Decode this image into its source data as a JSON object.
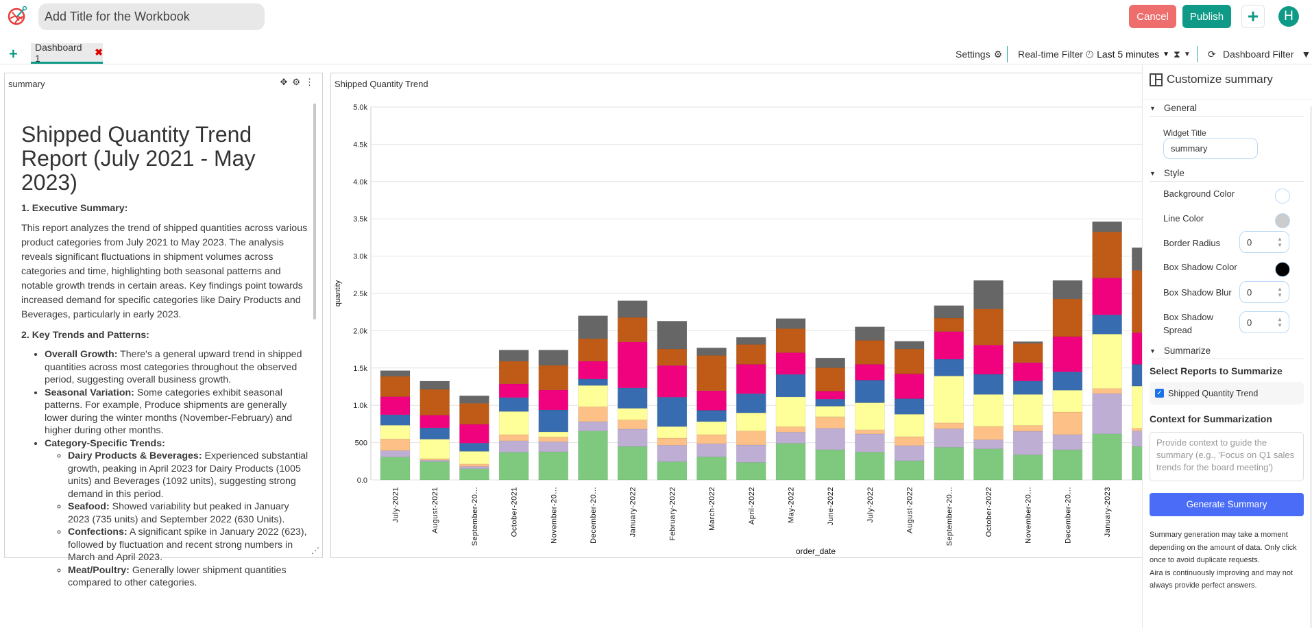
{
  "header": {
    "workbook_title_placeholder": "Add Title for the Workbook",
    "cancel": "Cancel",
    "publish": "Publish",
    "add_icon": "plus-icon",
    "avatar_initial": "H",
    "logo_icon": "aira-logo-icon"
  },
  "tabs": {
    "add_icon": "plus-icon",
    "items": [
      {
        "label": "Dashboard 1",
        "close_icon": "close-icon"
      }
    ]
  },
  "toolbar": {
    "settings": "Settings",
    "realtime": "Real-time Filter",
    "time_range": "Last 5 minutes",
    "dashboard_filter": "Dashboard Filter"
  },
  "summary_widget": {
    "title": "summary",
    "heading": "Shipped Quantity Trend Report (July 2021 - May 2023)",
    "s1": "1. Executive Summary:",
    "s1_text": "This report analyzes the trend of shipped quantities across various product categories from July 2021 to May 2023. The analysis reveals significant fluctuations in shipment volumes across categories and time, highlighting both seasonal patterns and notable growth trends in certain areas. Key findings point towards increased demand for specific categories like Dairy Products and Beverages, particularly in early 2023.",
    "s2": "2. Key Trends and Patterns:",
    "bullets": [
      {
        "b": "Overall Growth:",
        "t": " There's a general upward trend in shipped quantities across most categories throughout the observed period, suggesting overall business growth."
      },
      {
        "b": "Seasonal Variation:",
        "t": " Some categories exhibit seasonal patterns. For example, Produce shipments are generally lower during the winter months (November-February) and higher during other months."
      },
      {
        "b": "Category-Specific Trends:",
        "t": ""
      }
    ],
    "sub_bullets": [
      {
        "b": "Dairy Products & Beverages:",
        "t": " Experienced substantial growth, peaking in April 2023 for Dairy Products (1005 units) and Beverages (1092 units), suggesting strong demand in this period."
      },
      {
        "b": "Seafood:",
        "t": " Showed variability but peaked in January 2023 (735 units) and September 2022 (630 Units)."
      },
      {
        "b": "Confections:",
        "t": " A significant spike in January 2022 (623), followed by fluctuation and recent strong numbers in March and April 2023."
      },
      {
        "b": "Meat/Poultry:",
        "t": " Generally lower shipment quantities compared to other categories."
      }
    ]
  },
  "chart_widget": {
    "title": "Shipped Quantity Trend"
  },
  "chart_data": {
    "type": "bar",
    "stacked": true,
    "xlabel": "order_date",
    "ylabel": "quantity",
    "ylim": [
      0,
      5000
    ],
    "grid": true,
    "y_ticks": [
      {
        "v": 0,
        "l": "0.0"
      },
      {
        "v": 500,
        "l": "500"
      },
      {
        "v": 1000,
        "l": "1.0k"
      },
      {
        "v": 1500,
        "l": "1.5k"
      },
      {
        "v": 2000,
        "l": "2.0k"
      },
      {
        "v": 2500,
        "l": "2.5k"
      },
      {
        "v": 3000,
        "l": "3.0k"
      },
      {
        "v": 3500,
        "l": "3.5k"
      },
      {
        "v": 4000,
        "l": "4.0k"
      },
      {
        "v": 4500,
        "l": "4.5k"
      },
      {
        "v": 5000,
        "l": "5.0k"
      }
    ],
    "categories": [
      "July-2021",
      "August-2021",
      "September-20...",
      "October-2021",
      "November-20...",
      "December-20...",
      "January-2022",
      "February-2022",
      "March-2022",
      "April-2022",
      "May-2022",
      "June-2022",
      "July-2022",
      "August-2022",
      "September-20...",
      "October-2022",
      "November-20...",
      "December-20...",
      "January-2023",
      ""
    ],
    "series": [
      {
        "color": "#7fc97f",
        "values": [
          307,
          245,
          150,
          371,
          378,
          656,
          448,
          245,
          310,
          236,
          491,
          405,
          374,
          258,
          438,
          416,
          337,
          404,
          618,
          448
        ]
      },
      {
        "color": "#beaed4",
        "values": [
          86,
          20,
          30,
          154,
          134,
          126,
          233,
          221,
          175,
          233,
          150,
          288,
          243,
          202,
          247,
          123,
          315,
          203,
          539,
          208
        ]
      },
      {
        "color": "#fdc086",
        "values": [
          156,
          20,
          33,
          82,
          65,
          199,
          123,
          95,
          122,
          187,
          71,
          154,
          55,
          120,
          79,
          180,
          78,
          303,
          68,
          37
        ]
      },
      {
        "color": "#ffff99",
        "values": [
          184,
          261,
          170,
          310,
          67,
          285,
          156,
          154,
          175,
          243,
          401,
          141,
          362,
          300,
          629,
          427,
          416,
          292,
          730,
          565
        ]
      },
      {
        "color": "#386cb0",
        "values": [
          141,
          153,
          111,
          187,
          294,
          86,
          273,
          395,
          151,
          257,
          301,
          95,
          303,
          209,
          225,
          270,
          180,
          247,
          258,
          291
        ]
      },
      {
        "color": "#f0027f",
        "values": [
          242,
          169,
          251,
          184,
          267,
          239,
          617,
          424,
          263,
          393,
          292,
          107,
          212,
          331,
          371,
          393,
          247,
          472,
          495,
          426
        ]
      },
      {
        "color": "#bf5b17",
        "values": [
          273,
          346,
          282,
          303,
          331,
          303,
          328,
          221,
          473,
          267,
          322,
          313,
          322,
          335,
          180,
          483,
          258,
          506,
          618,
          835
        ]
      },
      {
        "color": "#666666",
        "values": [
          76,
          110,
          101,
          150,
          205,
          306,
          224,
          374,
          101,
          95,
          135,
          132,
          181,
          104,
          168,
          382,
          23,
          247,
          135,
          303
        ]
      }
    ]
  },
  "customize": {
    "title": "Customize summary",
    "general": "General",
    "widget_title_label": "Widget Title",
    "widget_title_value": "summary",
    "style": "Style",
    "bg_color": "Background Color",
    "line_color": "Line Color",
    "border_radius": "Border Radius",
    "border_radius_value": "0",
    "shadow_color": "Box Shadow Color",
    "shadow_blur": "Box Shadow Blur",
    "shadow_blur_value": "0",
    "shadow_spread": "Box Shadow Spread",
    "shadow_spread_value": "0",
    "swatches": {
      "background": "#ffffff",
      "line": "#cccccc",
      "shadow": "#000000"
    },
    "summarize": "Summarize",
    "select_reports": "Select Reports to Summarize",
    "report_option": "Shipped Quantity Trend",
    "report_checked": true,
    "context_label": "Context for Summarization",
    "context_placeholder": "Provide context to guide the summary (e.g., 'Focus on Q1 sales trends for the board meeting')",
    "generate": "Generate Summary",
    "note1": "Summary generation may take a moment depending on the amount of data. Only click once to avoid duplicate requests.",
    "note2": "Aira is continuously improving and may not always provide perfect answers."
  },
  "colors": {
    "accent": "#0e9a86",
    "cancel": "#ee6e6e",
    "generate": "#4a6cf7",
    "close": "#e00000"
  }
}
